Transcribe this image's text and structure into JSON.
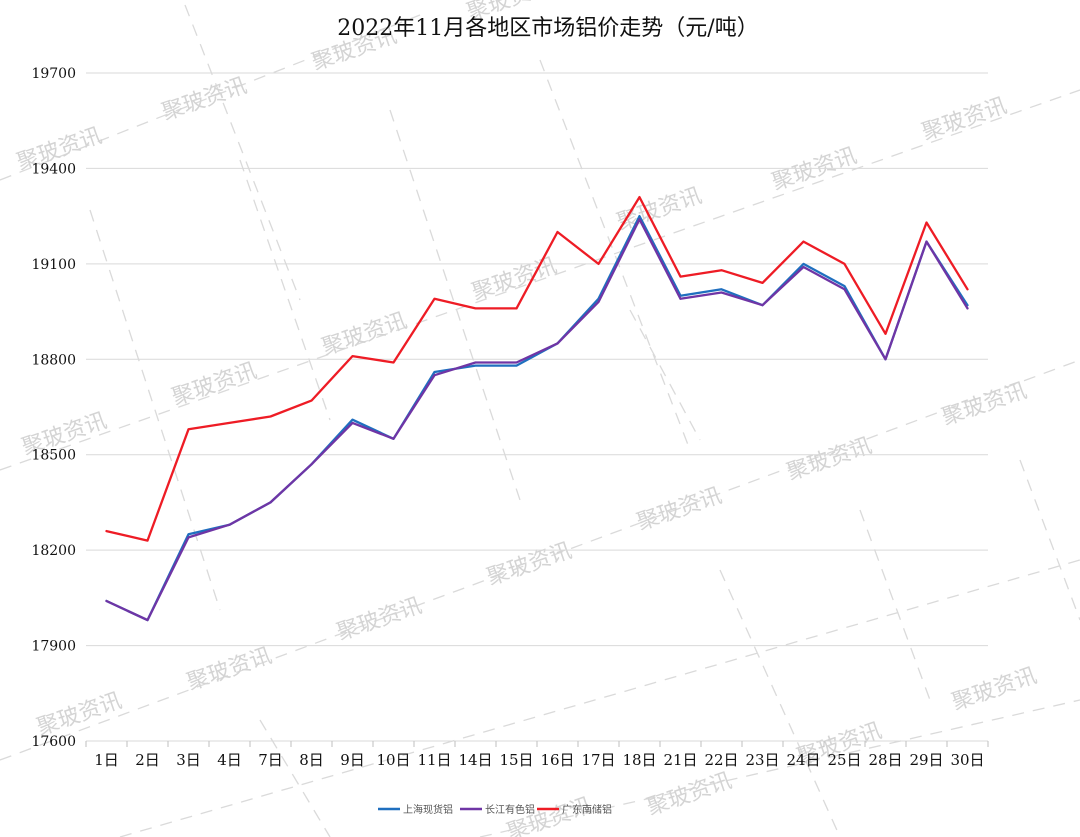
{
  "chart_data": {
    "type": "line",
    "title": "2022年11月各地区市场铝价走势（元/吨）",
    "xlabel": "",
    "ylabel": "",
    "categories": [
      "1日",
      "2日",
      "3日",
      "4日",
      "7日",
      "8日",
      "9日",
      "10日",
      "11日",
      "14日",
      "15日",
      "16日",
      "17日",
      "18日",
      "21日",
      "22日",
      "23日",
      "24日",
      "25日",
      "28日",
      "29日",
      "30日"
    ],
    "ylim": [
      17600,
      19700
    ],
    "yticks": [
      17600,
      17900,
      18200,
      18500,
      18800,
      19100,
      19400,
      19700
    ],
    "grid": true,
    "legend_position": "bottom",
    "series": [
      {
        "name": "上海现货铝",
        "color": "#1f6fbf",
        "values": [
          18040,
          17980,
          18250,
          18280,
          18350,
          18470,
          18610,
          18550,
          18760,
          18780,
          18780,
          18850,
          18990,
          19250,
          19000,
          19020,
          18970,
          19100,
          19030,
          18800,
          19170,
          18970
        ]
      },
      {
        "name": "长江有色铝",
        "color": "#6f35a5",
        "values": [
          18040,
          17980,
          18240,
          18280,
          18350,
          18470,
          18600,
          18550,
          18750,
          18790,
          18790,
          18850,
          18980,
          19240,
          18990,
          19010,
          18970,
          19090,
          19020,
          18800,
          19170,
          18960
        ]
      },
      {
        "name": "广东南储铝",
        "color": "#ee1c25",
        "values": [
          18260,
          18230,
          18580,
          18600,
          18620,
          18670,
          18810,
          18790,
          18990,
          18960,
          18960,
          19200,
          19100,
          19310,
          19060,
          19080,
          19040,
          19170,
          19100,
          18880,
          19230,
          19020
        ]
      }
    ]
  },
  "watermark": "聚玻资讯"
}
